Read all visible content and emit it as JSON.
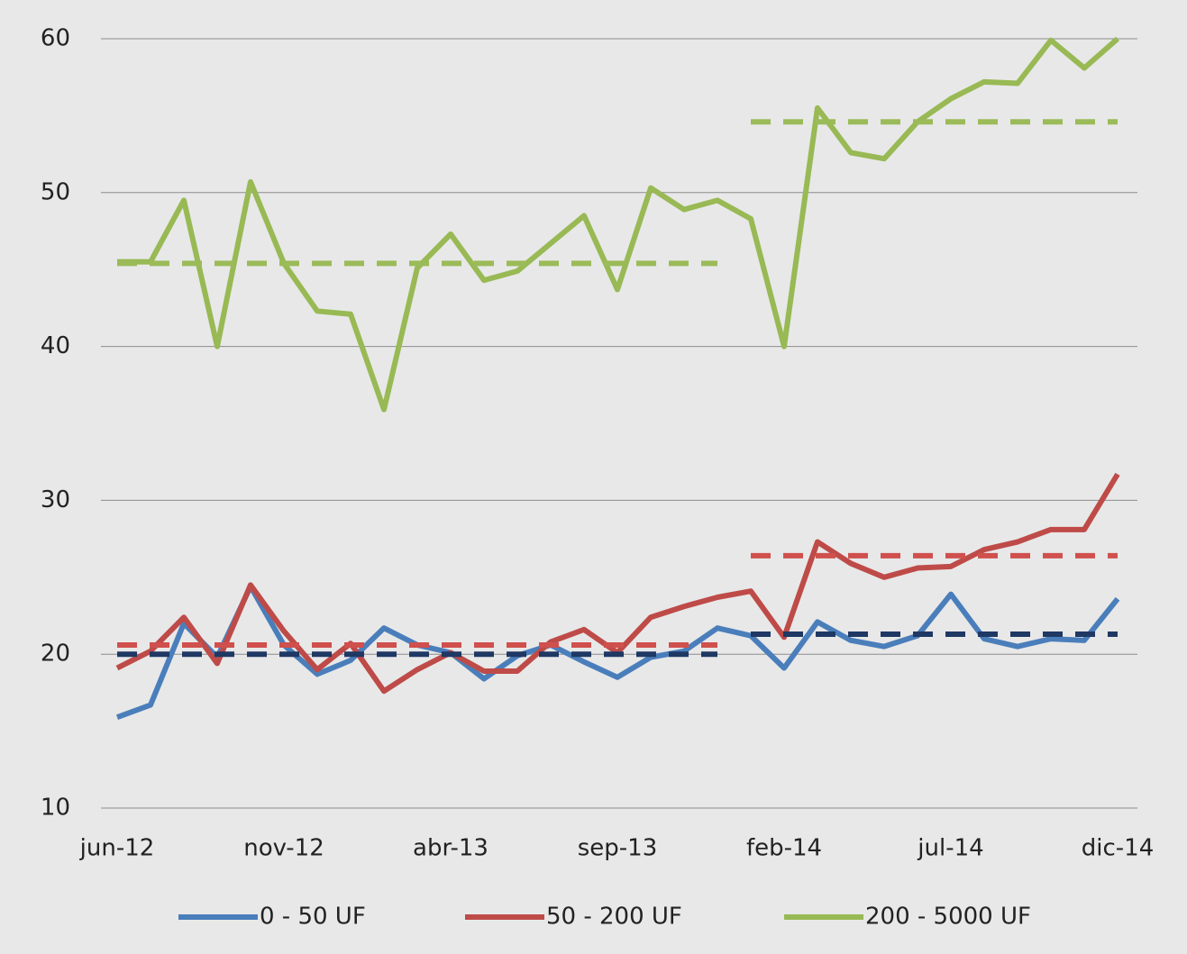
{
  "chart_data": {
    "type": "line",
    "categories": [
      "jun-12",
      null,
      null,
      null,
      null,
      "nov-12",
      null,
      null,
      null,
      null,
      "abr-13",
      null,
      null,
      null,
      null,
      "sep-13",
      null,
      null,
      null,
      null,
      "feb-14",
      null,
      null,
      null,
      null,
      "jul-14",
      null,
      null,
      null,
      null,
      "dic-14"
    ],
    "series": [
      {
        "name": "0 - 50 UF",
        "color": "#4a7ebb",
        "values": [
          15.9,
          16.7,
          22.0,
          19.8,
          24.4,
          20.6,
          18.7,
          19.6,
          21.7,
          20.6,
          20.1,
          18.4,
          19.9,
          20.6,
          19.5,
          18.5,
          19.8,
          20.2,
          21.7,
          21.2,
          19.1,
          22.1,
          20.9,
          20.5,
          21.2,
          23.9,
          21.0,
          20.5,
          21.0,
          20.9,
          23.6
        ]
      },
      {
        "name": "50 - 200 UF",
        "color": "#be4b48",
        "values": [
          19.1,
          20.2,
          22.4,
          19.4,
          24.5,
          21.5,
          19.0,
          20.7,
          17.6,
          19.0,
          20.1,
          18.9,
          18.9,
          20.8,
          21.6,
          20.1,
          22.4,
          23.1,
          23.7,
          24.1,
          21.1,
          27.3,
          25.9,
          25.0,
          25.6,
          25.7,
          26.8,
          27.3,
          28.1,
          28.1,
          31.7
        ]
      },
      {
        "name": "200 - 5000 UF",
        "color": "#98b954",
        "values": [
          45.5,
          45.5,
          49.5,
          40.0,
          50.7,
          45.4,
          42.3,
          42.1,
          35.9,
          45.1,
          47.3,
          44.3,
          44.9,
          46.7,
          48.5,
          43.7,
          50.3,
          48.9,
          49.5,
          48.3,
          40.0,
          55.5,
          52.6,
          52.2,
          54.6,
          56.1,
          57.2,
          57.1,
          59.9,
          58.1,
          60.0
        ]
      }
    ],
    "reference_series": [
      {
        "color": "#9bbb59",
        "dashed": true,
        "values": [
          45.4,
          45.4,
          45.4,
          45.4,
          45.4,
          45.4,
          45.4,
          45.4,
          45.4,
          45.4,
          45.4,
          45.4,
          45.4,
          45.4,
          45.4,
          45.4,
          45.4,
          45.4,
          45.4,
          null,
          null,
          null,
          null,
          null,
          null,
          null,
          null,
          null,
          null,
          null,
          null
        ]
      },
      {
        "color": "#9bbb59",
        "dashed": true,
        "values": [
          null,
          null,
          null,
          null,
          null,
          null,
          null,
          null,
          null,
          null,
          null,
          null,
          null,
          null,
          null,
          null,
          null,
          null,
          null,
          54.6,
          54.6,
          54.6,
          54.6,
          54.6,
          54.6,
          54.6,
          54.6,
          54.6,
          54.6,
          54.6,
          54.6
        ]
      },
      {
        "color": "#d0504d",
        "dashed": true,
        "values": [
          20.6,
          20.6,
          20.6,
          20.6,
          20.6,
          20.6,
          20.6,
          20.6,
          20.6,
          20.6,
          20.6,
          20.6,
          20.6,
          20.6,
          20.6,
          20.6,
          20.6,
          20.6,
          20.6,
          null,
          null,
          null,
          null,
          null,
          null,
          null,
          null,
          null,
          null,
          null,
          null
        ]
      },
      {
        "color": "#d0504d",
        "dashed": true,
        "values": [
          null,
          null,
          null,
          null,
          null,
          null,
          null,
          null,
          null,
          null,
          null,
          null,
          null,
          null,
          null,
          null,
          null,
          null,
          null,
          26.4,
          26.4,
          26.4,
          26.4,
          26.4,
          26.4,
          26.4,
          26.4,
          26.4,
          26.4,
          26.4,
          26.4
        ]
      },
      {
        "color": "#1f3864",
        "dashed": true,
        "values": [
          20.0,
          20.0,
          20.0,
          20.0,
          20.0,
          20.0,
          20.0,
          20.0,
          20.0,
          20.0,
          20.0,
          20.0,
          20.0,
          20.0,
          20.0,
          20.0,
          20.0,
          20.0,
          20.0,
          null,
          null,
          null,
          null,
          null,
          null,
          null,
          null,
          null,
          null,
          null,
          null
        ]
      },
      {
        "color": "#1f3864",
        "dashed": true,
        "values": [
          null,
          null,
          null,
          null,
          null,
          null,
          null,
          null,
          null,
          null,
          null,
          null,
          null,
          null,
          null,
          null,
          null,
          null,
          null,
          21.3,
          21.3,
          21.3,
          21.3,
          21.3,
          21.3,
          21.3,
          21.3,
          21.3,
          21.3,
          21.3,
          21.3
        ]
      }
    ],
    "ylim": [
      10,
      60
    ],
    "yticks": [
      10,
      20,
      30,
      40,
      50,
      60
    ],
    "grid": true,
    "legend": "bottom"
  }
}
